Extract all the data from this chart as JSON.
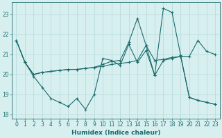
{
  "xlabel": "Humidex (Indice chaleur)",
  "bg_color": "#d8eff0",
  "grid_color": "#b0d8d8",
  "line_color": "#1a6b6b",
  "xlim": [
    -0.5,
    23.5
  ],
  "ylim": [
    17.8,
    23.6
  ],
  "yticks": [
    18,
    19,
    20,
    21,
    22,
    23
  ],
  "xticks": [
    0,
    1,
    2,
    3,
    4,
    5,
    6,
    7,
    8,
    9,
    10,
    11,
    12,
    13,
    14,
    15,
    16,
    17,
    18,
    19,
    20,
    21,
    22,
    23
  ],
  "line1_x": [
    0,
    1,
    2,
    3,
    4,
    5,
    6,
    7,
    8,
    9,
    10,
    11,
    12,
    13,
    14,
    15,
    16,
    17,
    18,
    19,
    20,
    21,
    22,
    23
  ],
  "line1_y": [
    21.7,
    20.6,
    19.9,
    19.35,
    18.8,
    18.6,
    18.4,
    18.8,
    18.25,
    19.0,
    20.8,
    20.7,
    20.45,
    21.5,
    20.6,
    21.2,
    19.95,
    20.7,
    20.8,
    20.9,
    18.85,
    18.7,
    18.6,
    18.5
  ],
  "line2_x": [
    0,
    1,
    2,
    3,
    4,
    5,
    6,
    7,
    8,
    9,
    10,
    11,
    12,
    13,
    14,
    15,
    16,
    17,
    18,
    19,
    20,
    21,
    22,
    23
  ],
  "line2_y": [
    21.7,
    20.6,
    20.0,
    20.1,
    20.15,
    20.2,
    20.25,
    20.25,
    20.3,
    20.35,
    20.4,
    20.5,
    20.55,
    20.6,
    20.7,
    21.45,
    20.7,
    20.75,
    20.85,
    20.9,
    20.9,
    21.7,
    21.15,
    21.0
  ],
  "line3_x": [
    0,
    1,
    2,
    3,
    4,
    5,
    6,
    7,
    8,
    9,
    10,
    11,
    12,
    13,
    14,
    15,
    16,
    17,
    18,
    19,
    20,
    21,
    22,
    23
  ],
  "line3_y": [
    21.7,
    20.6,
    20.0,
    20.1,
    20.15,
    20.2,
    20.25,
    20.25,
    20.3,
    20.35,
    20.5,
    20.65,
    20.7,
    21.6,
    22.8,
    21.45,
    19.95,
    23.3,
    23.1,
    20.95,
    18.85,
    18.7,
    18.6,
    18.5
  ]
}
